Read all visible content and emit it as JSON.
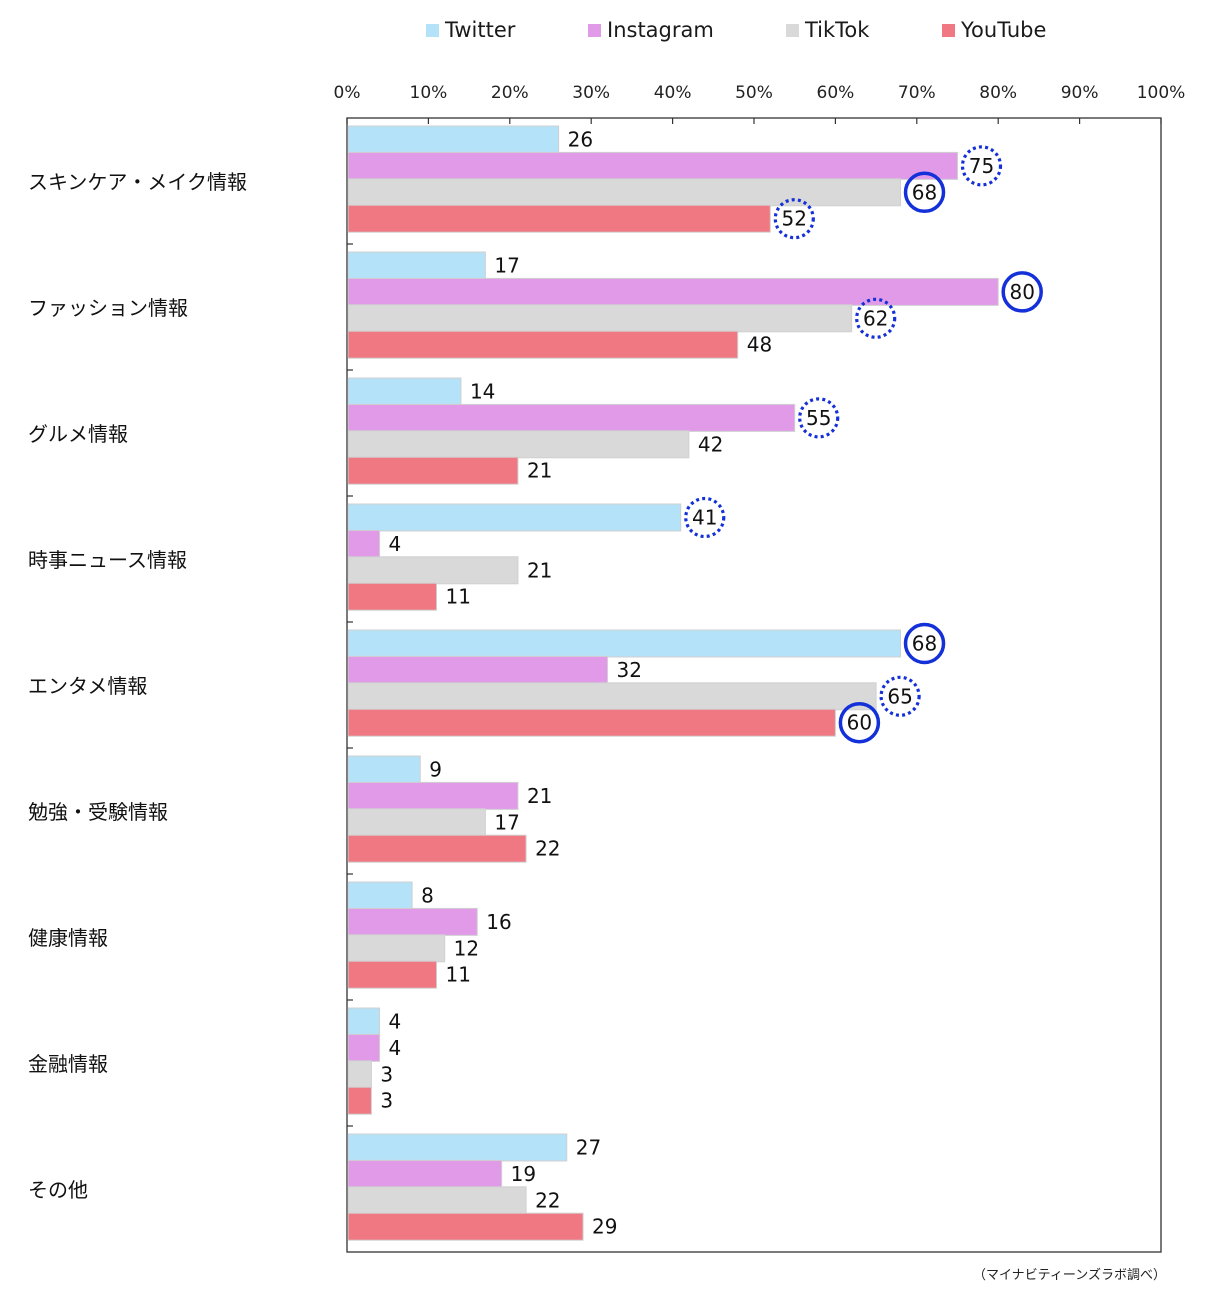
{
  "chart_data": {
    "type": "bar",
    "orientation": "horizontal",
    "title": "",
    "xlabel": "",
    "ylabel": "",
    "xlim": [
      0,
      100
    ],
    "x_ticks": [
      "0%",
      "10%",
      "20%",
      "30%",
      "40%",
      "50%",
      "60%",
      "70%",
      "80%",
      "90%",
      "100%"
    ],
    "legend_position": "top",
    "categories": [
      "スキンケア・メイク情報",
      "ファッション情報",
      "グルメ情報",
      "時事ニュース情報",
      "エンタメ情報",
      "勉強・受験情報",
      "健康情報",
      "金融情報",
      "その他"
    ],
    "series": [
      {
        "name": "Twitter",
        "color": "#b4e2f8",
        "values": [
          26,
          17,
          14,
          41,
          68,
          9,
          8,
          4,
          27
        ]
      },
      {
        "name": "Instagram",
        "color": "#e09ae8",
        "values": [
          75,
          80,
          55,
          4,
          32,
          21,
          16,
          4,
          19
        ]
      },
      {
        "name": "TikTok",
        "color": "#d9d9d9",
        "values": [
          68,
          62,
          42,
          21,
          65,
          17,
          12,
          3,
          22
        ]
      },
      {
        "name": "YouTube",
        "color": "#ef7882",
        "values": [
          52,
          48,
          21,
          11,
          60,
          22,
          11,
          3,
          29
        ]
      }
    ],
    "highlights": [
      {
        "category": 0,
        "series": 1,
        "style": "dotted"
      },
      {
        "category": 0,
        "series": 2,
        "style": "solid"
      },
      {
        "category": 0,
        "series": 3,
        "style": "dotted"
      },
      {
        "category": 1,
        "series": 1,
        "style": "solid"
      },
      {
        "category": 1,
        "series": 2,
        "style": "dotted"
      },
      {
        "category": 2,
        "series": 1,
        "style": "dotted"
      },
      {
        "category": 3,
        "series": 0,
        "style": "dotted"
      },
      {
        "category": 4,
        "series": 0,
        "style": "solid"
      },
      {
        "category": 4,
        "series": 2,
        "style": "dotted"
      },
      {
        "category": 4,
        "series": 3,
        "style": "solid"
      }
    ],
    "highlight_color": "#1430d8"
  },
  "source_note": "（マイナビティーンズラボ調べ）"
}
